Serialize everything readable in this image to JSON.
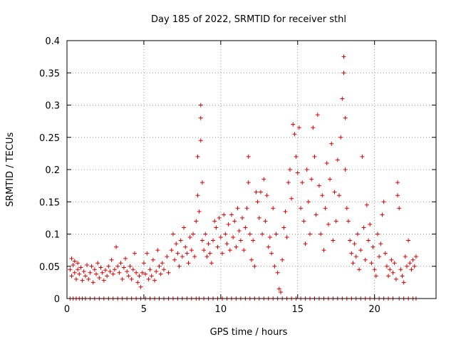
{
  "chart_data": {
    "type": "scatter",
    "title": "Day 185 of 2022, SRMTID for receiver sthl",
    "xlabel": "GPS time / hours",
    "ylabel": "SRMTID / TECUs",
    "xlim": [
      0,
      24
    ],
    "ylim": [
      0,
      0.4
    ],
    "xticks": [
      0,
      5,
      10,
      15,
      20
    ],
    "xtick_labels": [
      "0",
      "5",
      "10",
      "15",
      "20"
    ],
    "yticks": [
      0,
      0.05,
      0.1,
      0.15,
      0.2,
      0.25,
      0.3,
      0.35,
      0.4
    ],
    "ytick_labels": [
      "0",
      "0.05",
      "0.1",
      "0.15",
      "0.2",
      "0.25",
      "0.3",
      "0.35",
      "0.4"
    ],
    "grid": true,
    "marker": "+",
    "color": "#dd0000",
    "series": [
      {
        "values": [
          [
            0.2,
            0.045
          ],
          [
            0.2,
            0.0
          ],
          [
            0.3,
            0.062
          ],
          [
            0.3,
            0.035
          ],
          [
            0.4,
            0.052
          ],
          [
            0.4,
            0.0
          ],
          [
            0.5,
            0.04
          ],
          [
            0.5,
            0.058
          ],
          [
            0.6,
            0.03
          ],
          [
            0.6,
            0.0
          ],
          [
            0.7,
            0.055
          ],
          [
            0.7,
            0.045
          ],
          [
            0.8,
            0.038
          ],
          [
            0.8,
            0.0
          ],
          [
            0.9,
            0.048
          ],
          [
            1.0,
            0.028
          ],
          [
            1.0,
            0.0
          ],
          [
            1.1,
            0.042
          ],
          [
            1.2,
            0.035
          ],
          [
            1.2,
            0.0
          ],
          [
            1.3,
            0.052
          ],
          [
            1.4,
            0.03
          ],
          [
            1.5,
            0.04
          ],
          [
            1.5,
            0.0
          ],
          [
            1.6,
            0.05
          ],
          [
            1.7,
            0.025
          ],
          [
            1.8,
            0.045
          ],
          [
            1.8,
            0.0
          ],
          [
            1.9,
            0.038
          ],
          [
            2.0,
            0.055
          ],
          [
            2.1,
            0.032
          ],
          [
            2.1,
            0.0
          ],
          [
            2.2,
            0.048
          ],
          [
            2.3,
            0.04
          ],
          [
            2.4,
            0.028
          ],
          [
            2.4,
            0.0
          ],
          [
            2.5,
            0.044
          ],
          [
            2.6,
            0.035
          ],
          [
            2.7,
            0.05
          ],
          [
            2.7,
            0.0
          ],
          [
            2.8,
            0.042
          ],
          [
            2.9,
            0.06
          ],
          [
            3.0,
            0.038
          ],
          [
            3.0,
            0.0
          ],
          [
            3.1,
            0.045
          ],
          [
            3.2,
            0.08
          ],
          [
            3.3,
            0.05
          ],
          [
            3.3,
            0.0
          ],
          [
            3.4,
            0.04
          ],
          [
            3.5,
            0.055
          ],
          [
            3.6,
            0.03
          ],
          [
            3.6,
            0.0
          ],
          [
            3.7,
            0.048
          ],
          [
            3.8,
            0.062
          ],
          [
            3.9,
            0.042
          ],
          [
            3.9,
            0.0
          ],
          [
            4.0,
            0.035
          ],
          [
            4.1,
            0.05
          ],
          [
            4.2,
            0.03
          ],
          [
            4.2,
            0.0
          ],
          [
            4.3,
            0.045
          ],
          [
            4.4,
            0.07
          ],
          [
            4.5,
            0.04
          ],
          [
            4.5,
            0.0
          ],
          [
            4.6,
            0.025
          ],
          [
            4.7,
            0.035
          ],
          [
            4.8,
            0.018
          ],
          [
            4.8,
            0.0
          ],
          [
            4.9,
            0.04
          ],
          [
            5.0,
            0.055
          ],
          [
            5.1,
            0.038
          ],
          [
            5.1,
            0.0
          ],
          [
            5.2,
            0.07
          ],
          [
            5.3,
            0.03
          ],
          [
            5.4,
            0.045
          ],
          [
            5.4,
            0.0
          ],
          [
            5.5,
            0.035
          ],
          [
            5.6,
            0.06
          ],
          [
            5.7,
            0.028
          ],
          [
            5.7,
            0.0
          ],
          [
            5.8,
            0.042
          ],
          [
            5.9,
            0.075
          ],
          [
            6.0,
            0.05
          ],
          [
            6.0,
            0.0
          ],
          [
            6.1,
            0.038
          ],
          [
            6.2,
            0.055
          ],
          [
            6.3,
            0.045
          ],
          [
            6.3,
            0.0
          ],
          [
            6.5,
            0.065
          ],
          [
            6.6,
            0.04
          ],
          [
            6.6,
            0.0
          ],
          [
            6.8,
            0.075
          ],
          [
            6.9,
            0.1
          ],
          [
            6.9,
            0.0
          ],
          [
            7.0,
            0.06
          ],
          [
            7.1,
            0.085
          ],
          [
            7.2,
            0.07
          ],
          [
            7.2,
            0.0
          ],
          [
            7.3,
            0.05
          ],
          [
            7.4,
            0.09
          ],
          [
            7.5,
            0.065
          ],
          [
            7.5,
            0.0
          ],
          [
            7.6,
            0.11
          ],
          [
            7.7,
            0.08
          ],
          [
            7.8,
            0.07
          ],
          [
            7.8,
            0.0
          ],
          [
            7.9,
            0.055
          ],
          [
            8.0,
            0.095
          ],
          [
            8.1,
            0.075
          ],
          [
            8.1,
            0.0
          ],
          [
            8.2,
            0.1
          ],
          [
            8.3,
            0.065
          ],
          [
            8.4,
            0.12
          ],
          [
            8.4,
            0.0
          ],
          [
            8.5,
            0.22
          ],
          [
            8.5,
            0.16
          ],
          [
            8.6,
            0.135
          ],
          [
            8.6,
            0.0
          ],
          [
            8.7,
            0.3
          ],
          [
            8.7,
            0.28
          ],
          [
            8.7,
            0.245
          ],
          [
            8.8,
            0.18
          ],
          [
            8.8,
            0.09
          ],
          [
            8.9,
            0.075
          ],
          [
            8.9,
            0.0
          ],
          [
            9.0,
            0.1
          ],
          [
            9.1,
            0.065
          ],
          [
            9.2,
            0.085
          ],
          [
            9.2,
            0.0
          ],
          [
            9.3,
            0.07
          ],
          [
            9.4,
            0.055
          ],
          [
            9.5,
            0.09
          ],
          [
            9.5,
            0.0
          ],
          [
            9.6,
            0.12
          ],
          [
            9.7,
            0.11
          ],
          [
            9.8,
            0.08
          ],
          [
            9.8,
            0.0
          ],
          [
            9.9,
            0.125
          ],
          [
            10.0,
            0.095
          ],
          [
            10.1,
            0.07
          ],
          [
            10.1,
            0.0
          ],
          [
            10.2,
            0.13
          ],
          [
            10.3,
            0.1
          ],
          [
            10.4,
            0.085
          ],
          [
            10.4,
            0.0
          ],
          [
            10.5,
            0.115
          ],
          [
            10.6,
            0.075
          ],
          [
            10.7,
            0.13
          ],
          [
            10.7,
            0.0
          ],
          [
            10.8,
            0.095
          ],
          [
            10.9,
            0.12
          ],
          [
            11.0,
            0.08
          ],
          [
            11.0,
            0.0
          ],
          [
            11.1,
            0.14
          ],
          [
            11.2,
            0.105
          ],
          [
            11.3,
            0.09
          ],
          [
            11.3,
            0.0
          ],
          [
            11.4,
            0.125
          ],
          [
            11.5,
            0.075
          ],
          [
            11.6,
            0.11
          ],
          [
            11.6,
            0.0
          ],
          [
            11.7,
            0.14
          ],
          [
            11.8,
            0.18
          ],
          [
            11.8,
            0.22
          ],
          [
            11.9,
            0.1
          ],
          [
            11.9,
            0.0
          ],
          [
            12.0,
            0.06
          ],
          [
            12.1,
            0.09
          ],
          [
            12.2,
            0.05
          ],
          [
            12.2,
            0.0
          ],
          [
            12.3,
            0.165
          ],
          [
            12.4,
            0.15
          ],
          [
            12.5,
            0.125
          ],
          [
            12.5,
            0.0
          ],
          [
            12.6,
            0.165
          ],
          [
            12.7,
            0.1
          ],
          [
            12.8,
            0.185
          ],
          [
            12.8,
            0.0
          ],
          [
            12.9,
            0.12
          ],
          [
            13.0,
            0.16
          ],
          [
            13.1,
            0.08
          ],
          [
            13.1,
            0.0
          ],
          [
            13.2,
            0.095
          ],
          [
            13.3,
            0.07
          ],
          [
            13.4,
            0.14
          ],
          [
            13.4,
            0.0
          ],
          [
            13.5,
            0.05
          ],
          [
            13.6,
            0.1
          ],
          [
            13.7,
            0.04
          ],
          [
            13.7,
            0.0
          ],
          [
            13.8,
            0.015
          ],
          [
            13.9,
            0.01
          ],
          [
            14.0,
            0.06
          ],
          [
            14.0,
            0.0
          ],
          [
            14.1,
            0.11
          ],
          [
            14.2,
            0.135
          ],
          [
            14.3,
            0.095
          ],
          [
            14.3,
            0.0
          ],
          [
            14.4,
            0.18
          ],
          [
            14.5,
            0.2
          ],
          [
            14.6,
            0.155
          ],
          [
            14.6,
            0.0
          ],
          [
            14.7,
            0.27
          ],
          [
            14.8,
            0.255
          ],
          [
            14.9,
            0.22
          ],
          [
            14.9,
            0.0
          ],
          [
            15.0,
            0.195
          ],
          [
            15.1,
            0.265
          ],
          [
            15.2,
            0.14
          ],
          [
            15.2,
            0.0
          ],
          [
            15.3,
            0.18
          ],
          [
            15.4,
            0.12
          ],
          [
            15.5,
            0.085
          ],
          [
            15.5,
            0.0
          ],
          [
            15.6,
            0.2
          ],
          [
            15.7,
            0.15
          ],
          [
            15.8,
            0.1
          ],
          [
            15.8,
            0.0
          ],
          [
            15.9,
            0.185
          ],
          [
            16.0,
            0.265
          ],
          [
            16.1,
            0.22
          ],
          [
            16.1,
            0.0
          ],
          [
            16.2,
            0.13
          ],
          [
            16.3,
            0.285
          ],
          [
            16.4,
            0.175
          ],
          [
            16.4,
            0.0
          ],
          [
            16.5,
            0.1
          ],
          [
            16.6,
            0.16
          ],
          [
            16.7,
            0.075
          ],
          [
            16.7,
            0.0
          ],
          [
            16.8,
            0.14
          ],
          [
            16.9,
            0.21
          ],
          [
            17.0,
            0.115
          ],
          [
            17.0,
            0.0
          ],
          [
            17.1,
            0.185
          ],
          [
            17.2,
            0.24
          ],
          [
            17.3,
            0.09
          ],
          [
            17.3,
            0.0
          ],
          [
            17.4,
            0.165
          ],
          [
            17.5,
            0.12
          ],
          [
            17.6,
            0.215
          ],
          [
            17.6,
            0.0
          ],
          [
            17.7,
            0.16
          ],
          [
            17.8,
            0.25
          ],
          [
            17.9,
            0.31
          ],
          [
            17.9,
            0.0
          ],
          [
            18.0,
            0.375
          ],
          [
            18.0,
            0.35
          ],
          [
            18.1,
            0.28
          ],
          [
            18.1,
            0.2
          ],
          [
            18.2,
            0.14
          ],
          [
            18.2,
            0.0
          ],
          [
            18.3,
            0.12
          ],
          [
            18.4,
            0.09
          ],
          [
            18.5,
            0.07
          ],
          [
            18.5,
            0.0
          ],
          [
            18.6,
            0.055
          ],
          [
            18.7,
            0.085
          ],
          [
            18.8,
            0.065
          ],
          [
            18.8,
            0.0
          ],
          [
            18.9,
            0.1
          ],
          [
            19.0,
            0.045
          ],
          [
            19.1,
            0.075
          ],
          [
            19.1,
            0.0
          ],
          [
            19.2,
            0.22
          ],
          [
            19.3,
            0.11
          ],
          [
            19.4,
            0.06
          ],
          [
            19.4,
            0.0
          ],
          [
            19.5,
            0.145
          ],
          [
            19.6,
            0.09
          ],
          [
            19.7,
            0.115
          ],
          [
            19.7,
            0.0
          ],
          [
            19.8,
            0.055
          ],
          [
            19.9,
            0.08
          ],
          [
            20.0,
            0.045
          ],
          [
            20.0,
            0.0
          ],
          [
            20.1,
            0.035
          ],
          [
            20.2,
            0.1
          ],
          [
            20.3,
            0.065
          ],
          [
            20.3,
            0.0
          ],
          [
            20.4,
            0.085
          ],
          [
            20.5,
            0.13
          ],
          [
            20.6,
            0.15
          ],
          [
            20.6,
            0.0
          ],
          [
            20.7,
            0.07
          ],
          [
            20.8,
            0.05
          ],
          [
            20.9,
            0.035
          ],
          [
            20.9,
            0.0
          ],
          [
            21.0,
            0.045
          ],
          [
            21.1,
            0.06
          ],
          [
            21.2,
            0.04
          ],
          [
            21.2,
            0.0
          ],
          [
            21.3,
            0.055
          ],
          [
            21.4,
            0.03
          ],
          [
            21.5,
            0.18
          ],
          [
            21.5,
            0.16
          ],
          [
            21.6,
            0.14
          ],
          [
            21.6,
            0.0
          ],
          [
            21.7,
            0.045
          ],
          [
            21.8,
            0.035
          ],
          [
            21.9,
            0.025
          ],
          [
            21.9,
            0.0
          ],
          [
            22.0,
            0.065
          ],
          [
            22.1,
            0.05
          ],
          [
            22.2,
            0.09
          ],
          [
            22.2,
            0.0
          ],
          [
            22.3,
            0.055
          ],
          [
            22.4,
            0.045
          ],
          [
            22.5,
            0.06
          ],
          [
            22.5,
            0.0
          ],
          [
            22.6,
            0.05
          ],
          [
            22.7,
            0.065
          ],
          [
            22.7,
            0.0
          ]
        ]
      }
    ]
  }
}
